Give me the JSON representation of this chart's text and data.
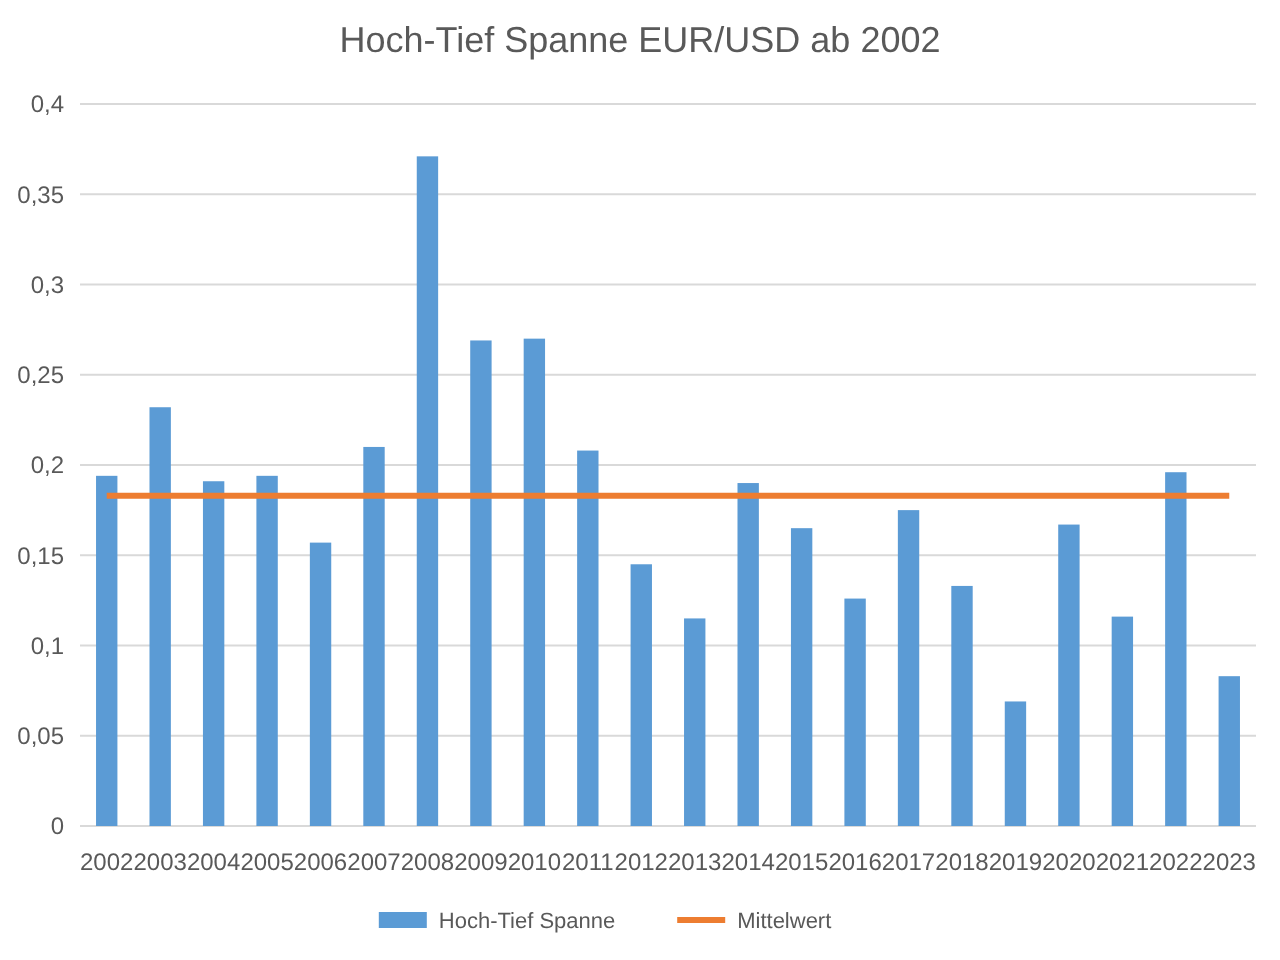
{
  "chart_data": {
    "type": "bar",
    "title": "Hoch-Tief Spanne EUR/USD ab 2002",
    "categories": [
      "2002",
      "2003",
      "2004",
      "2005",
      "2006",
      "2007",
      "2008",
      "2009",
      "2010",
      "2011",
      "2012",
      "2013",
      "2014",
      "2015",
      "2016",
      "2017",
      "2018",
      "2019",
      "2020",
      "2021",
      "2022",
      "2023"
    ],
    "series": [
      {
        "name": "Hoch-Tief Spanne",
        "color": "#5b9bd5",
        "values": [
          0.194,
          0.232,
          0.191,
          0.194,
          0.157,
          0.21,
          0.371,
          0.269,
          0.27,
          0.208,
          0.145,
          0.115,
          0.19,
          0.165,
          0.126,
          0.175,
          0.133,
          0.069,
          0.167,
          0.116,
          0.196,
          0.083
        ]
      },
      {
        "name": "Mittelwert",
        "type": "line",
        "color": "#ed7d31",
        "values": [
          0.183,
          0.183,
          0.183,
          0.183,
          0.183,
          0.183,
          0.183,
          0.183,
          0.183,
          0.183,
          0.183,
          0.183,
          0.183,
          0.183,
          0.183,
          0.183,
          0.183,
          0.183,
          0.183,
          0.183,
          0.183,
          0.183
        ]
      }
    ],
    "ylim": [
      0,
      0.4
    ],
    "yticks": [
      0,
      {
        "value": 0.05,
        "label": "0,05"
      },
      {
        "value": 0.1,
        "label": "0,1"
      },
      {
        "value": 0.15,
        "label": "0,15"
      },
      {
        "value": 0.2,
        "label": "0,2"
      },
      {
        "value": 0.25,
        "label": "0,25"
      },
      {
        "value": 0.3,
        "label": "0,3"
      },
      {
        "value": 0.35,
        "label": "0,35"
      },
      {
        "value": 0.4,
        "label": "0,4"
      }
    ],
    "grid": "y",
    "legend": "bottom",
    "marker": "none"
  }
}
